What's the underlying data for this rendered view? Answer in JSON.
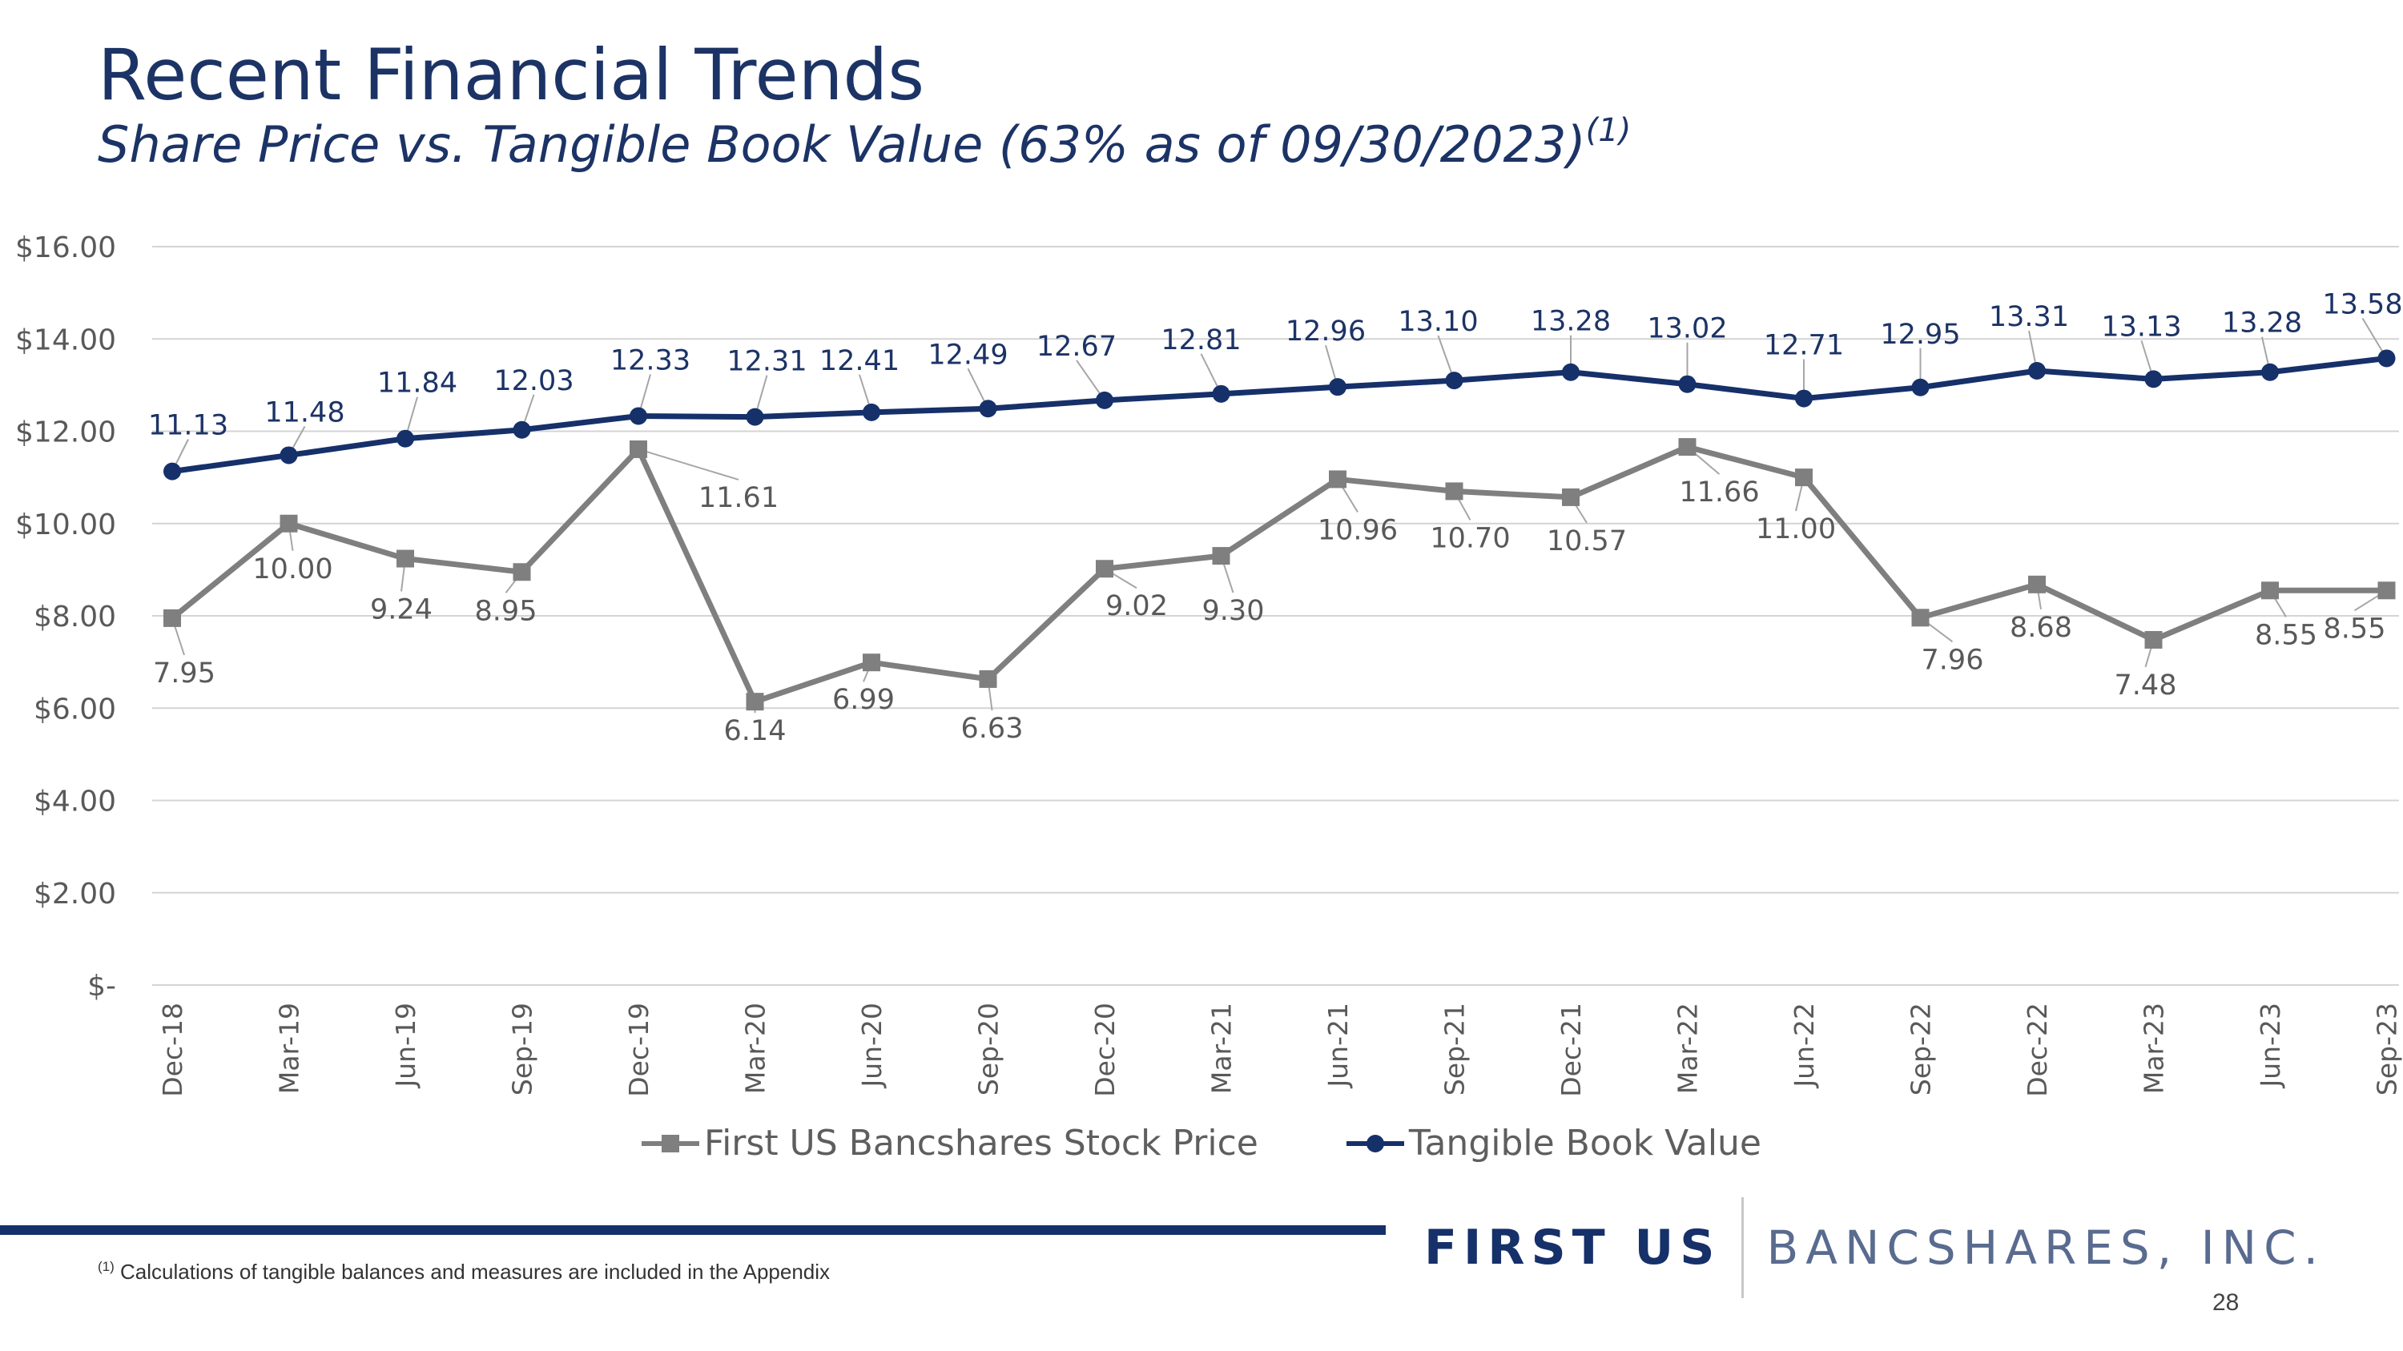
{
  "header": {
    "title": "Recent Financial Trends",
    "subtitle": "Share Price vs. Tangible Book Value (63% as of 09/30/2023)",
    "subtitle_sup": "(1)"
  },
  "chart_data": {
    "type": "line",
    "title": "",
    "xlabel": "",
    "ylabel": "",
    "ylim": [
      0,
      16
    ],
    "grid": true,
    "legend_position": "bottom",
    "y_ticks": [
      "$-",
      "$2.00",
      "$4.00",
      "$6.00",
      "$8.00",
      "$10.00",
      "$12.00",
      "$14.00",
      "$16.00"
    ],
    "categories": [
      "Dec-18",
      "Mar-19",
      "Jun-19",
      "Sep-19",
      "Dec-19",
      "Mar-20",
      "Jun-20",
      "Sep-20",
      "Dec-20",
      "Mar-21",
      "Jun-21",
      "Sep-21",
      "Dec-21",
      "Mar-22",
      "Jun-22",
      "Sep-22",
      "Dec-22",
      "Mar-23",
      "Jun-23",
      "Sep-23"
    ],
    "series": [
      {
        "name": "First US Bancshares Stock Price",
        "color": "#7f7f7f",
        "marker": "square",
        "values": [
          7.95,
          10.0,
          9.24,
          8.95,
          11.61,
          6.14,
          6.99,
          6.63,
          9.02,
          9.3,
          10.96,
          10.7,
          10.57,
          11.66,
          11.0,
          7.96,
          8.68,
          7.48,
          8.55,
          8.55
        ],
        "labels": [
          "7.95",
          "10.00",
          "9.24",
          "8.95",
          "11.61",
          "6.14",
          "6.99",
          "6.63",
          "9.02",
          "9.30",
          "10.96",
          "10.70",
          "10.57",
          "11.66",
          "11.00",
          "7.96",
          "8.68",
          "7.48",
          "8.55",
          "8.55"
        ]
      },
      {
        "name": "Tangible Book Value",
        "color": "#16306a",
        "marker": "circle",
        "values": [
          11.13,
          11.48,
          11.84,
          12.03,
          12.33,
          12.31,
          12.41,
          12.49,
          12.67,
          12.81,
          12.96,
          13.1,
          13.28,
          13.02,
          12.71,
          12.95,
          13.31,
          13.13,
          13.28,
          13.58
        ],
        "labels": [
          "11.13",
          "11.48",
          "11.84",
          "12.03",
          "12.33",
          "12.31",
          "12.41",
          "12.49",
          "12.67",
          "12.81",
          "12.96",
          "13.10",
          "13.28",
          "13.02",
          "12.71",
          "12.95",
          "13.31",
          "13.13",
          "13.28",
          "13.58"
        ]
      }
    ]
  },
  "brand": {
    "strong": "FIRST US",
    "light": "BANCSHARES, INC."
  },
  "footnote": {
    "sup": "(1)",
    "text": " Calculations of tangible balances and measures are included in the Appendix"
  },
  "page_number": "28"
}
